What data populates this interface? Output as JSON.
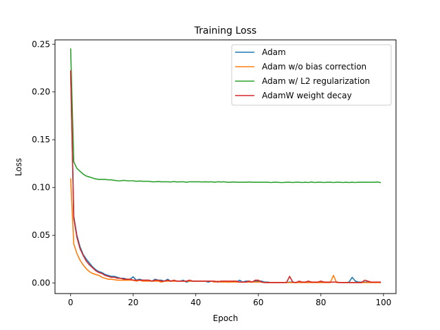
{
  "chart_data": {
    "type": "line",
    "title": "Training Loss",
    "xlabel": "Epoch",
    "ylabel": "Loss",
    "xlim": [
      -5,
      104
    ],
    "ylim": [
      -0.011,
      0.2545
    ],
    "xticks": [
      0,
      20,
      40,
      60,
      80,
      100
    ],
    "yticks": [
      0.0,
      0.05,
      0.1,
      0.15,
      0.2,
      0.25
    ],
    "ytick_labels": [
      "0.00",
      "0.05",
      "0.10",
      "0.15",
      "0.20",
      "0.25"
    ],
    "grid": false,
    "legend_position": "top-right",
    "series": [
      {
        "name": "Adam",
        "color": "#1f77b4",
        "x": [
          0,
          1,
          2,
          3,
          4,
          5,
          6,
          7,
          8,
          9,
          10,
          11,
          12,
          13,
          14,
          15,
          16,
          17,
          18,
          19,
          20,
          21,
          22,
          23,
          24,
          25,
          26,
          27,
          28,
          29,
          30,
          31,
          32,
          33,
          34,
          35,
          36,
          37,
          38,
          39,
          40,
          41,
          42,
          43,
          44,
          45,
          46,
          47,
          48,
          49,
          50,
          51,
          52,
          53,
          54,
          55,
          56,
          57,
          58,
          59,
          60,
          61,
          62,
          63,
          64,
          65,
          66,
          67,
          68,
          69,
          70,
          71,
          72,
          73,
          74,
          75,
          76,
          77,
          78,
          79,
          80,
          81,
          82,
          83,
          84,
          85,
          86,
          87,
          88,
          89,
          90,
          91,
          92,
          93,
          94,
          95,
          96,
          97,
          98,
          99
        ],
        "y": [
          0.222,
          0.07,
          0.05,
          0.038,
          0.03,
          0.025,
          0.021,
          0.017,
          0.014,
          0.012,
          0.011,
          0.009,
          0.008,
          0.007,
          0.007,
          0.006,
          0.005,
          0.005,
          0.004,
          0.004,
          0.0065,
          0.003,
          0.004,
          0.003,
          0.003,
          0.003,
          0.002,
          0.004,
          0.003,
          0.003,
          0.002,
          0.004,
          0.002,
          0.002,
          0.002,
          0.002,
          0.003,
          0.001,
          0.002,
          0.002,
          0.002,
          0.002,
          0.002,
          0.002,
          0.001,
          0.002,
          0.001,
          0.002,
          0.001,
          0.002,
          0.001,
          0.001,
          0.002,
          0.001,
          0.003,
          0.001,
          0.002,
          0.002,
          0.001,
          0.002,
          0.002,
          0.002,
          0.001,
          0.001,
          0.0005,
          0.0005,
          0.0005,
          0.0005,
          0.0005,
          0.0005,
          0.001,
          0.001,
          0.0005,
          0.001,
          0.001,
          0.001,
          0.001,
          0.001,
          0.001,
          0.001,
          0.001,
          0.001,
          0.001,
          0.001,
          0.001,
          0.001,
          0.0005,
          0.0005,
          0.0005,
          0.001,
          0.006,
          0.002,
          0.001,
          0.001,
          0.001,
          0.001,
          0.001,
          0.001,
          0.001,
          0.001
        ]
      },
      {
        "name": "Adam w/o bias correction",
        "color": "#ff7f0e",
        "x": [
          0,
          1,
          2,
          3,
          4,
          5,
          6,
          7,
          8,
          9,
          10,
          11,
          12,
          13,
          14,
          15,
          16,
          17,
          18,
          19,
          20,
          21,
          22,
          23,
          24,
          25,
          26,
          27,
          28,
          29,
          30,
          31,
          32,
          33,
          34,
          35,
          36,
          37,
          38,
          39,
          40,
          41,
          42,
          43,
          44,
          45,
          46,
          47,
          48,
          49,
          50,
          51,
          52,
          53,
          54,
          55,
          56,
          57,
          58,
          59,
          60,
          61,
          62,
          63,
          64,
          65,
          66,
          67,
          68,
          69,
          70,
          71,
          72,
          73,
          74,
          75,
          76,
          77,
          78,
          79,
          80,
          81,
          82,
          83,
          84,
          85,
          86,
          87,
          88,
          89,
          90,
          91,
          92,
          93,
          94,
          95,
          96,
          97,
          98,
          99
        ],
        "y": [
          0.109,
          0.041,
          0.031,
          0.024,
          0.019,
          0.015,
          0.012,
          0.01,
          0.009,
          0.008,
          0.006,
          0.005,
          0.004,
          0.004,
          0.0035,
          0.003,
          0.003,
          0.003,
          0.003,
          0.003,
          0.003,
          0.002,
          0.003,
          0.002,
          0.002,
          0.002,
          0.002,
          0.002,
          0.002,
          0.001,
          0.002,
          0.002,
          0.002,
          0.002,
          0.002,
          0.002,
          0.002,
          0.002,
          0.002,
          0.002,
          0.002,
          0.002,
          0.002,
          0.002,
          0.002,
          0.002,
          0.001,
          0.002,
          0.001,
          0.001,
          0.001,
          0.001,
          0.001,
          0.001,
          0.001,
          0.001,
          0.001,
          0.001,
          0.001,
          0.001,
          0.001,
          0.001,
          0.0005,
          0.0005,
          0.0005,
          0.0005,
          0.0005,
          0.0005,
          0.0005,
          0.0005,
          0.0005,
          0.0005,
          0.0005,
          0.0005,
          0.0005,
          0.0005,
          0.0005,
          0.0005,
          0.0005,
          0.0005,
          0.0005,
          0.0005,
          0.0005,
          0.0005,
          0.008,
          0.0005,
          0.0005,
          0.0005,
          0.0005,
          0.0005,
          0.0005,
          0.0005,
          0.0005,
          0.0005,
          0.0005,
          0.0005,
          0.0005,
          0.0005,
          0.0005,
          0.0005
        ]
      },
      {
        "name": "Adam w/ L2 regularization",
        "color": "#2ca02c",
        "x": [
          0,
          1,
          2,
          3,
          4,
          5,
          6,
          7,
          8,
          9,
          10,
          11,
          12,
          13,
          14,
          15,
          16,
          17,
          18,
          19,
          20,
          21,
          22,
          23,
          24,
          25,
          26,
          27,
          28,
          29,
          30,
          31,
          32,
          33,
          34,
          35,
          36,
          37,
          38,
          39,
          40,
          41,
          42,
          43,
          44,
          45,
          46,
          47,
          48,
          49,
          50,
          51,
          52,
          53,
          54,
          55,
          56,
          57,
          58,
          59,
          60,
          61,
          62,
          63,
          64,
          65,
          66,
          67,
          68,
          69,
          70,
          71,
          72,
          73,
          74,
          75,
          76,
          77,
          78,
          79,
          80,
          81,
          82,
          83,
          84,
          85,
          86,
          87,
          88,
          89,
          90,
          91,
          92,
          93,
          94,
          95,
          96,
          97,
          98,
          99
        ],
        "y": [
          0.245,
          0.127,
          0.12,
          0.117,
          0.114,
          0.112,
          0.111,
          0.11,
          0.109,
          0.1085,
          0.1085,
          0.1085,
          0.108,
          0.108,
          0.1075,
          0.107,
          0.107,
          0.1075,
          0.107,
          0.107,
          0.107,
          0.1065,
          0.1068,
          0.1065,
          0.1065,
          0.1065,
          0.106,
          0.106,
          0.1062,
          0.106,
          0.106,
          0.106,
          0.1058,
          0.1062,
          0.1058,
          0.106,
          0.106,
          0.1055,
          0.106,
          0.106,
          0.106,
          0.106,
          0.1058,
          0.106,
          0.1058,
          0.106,
          0.1055,
          0.106,
          0.1058,
          0.106,
          0.1055,
          0.1055,
          0.1058,
          0.1055,
          0.1055,
          0.1055,
          0.1055,
          0.1058,
          0.1055,
          0.1055,
          0.1055,
          0.1055,
          0.1055,
          0.1055,
          0.1052,
          0.1055,
          0.1055,
          0.1052,
          0.1052,
          0.1055,
          0.1055,
          0.1052,
          0.1055,
          0.1055,
          0.1052,
          0.1055,
          0.1052,
          0.1058,
          0.1052,
          0.1055,
          0.1055,
          0.1052,
          0.1055,
          0.1055,
          0.1052,
          0.1055,
          0.1055,
          0.1052,
          0.1055,
          0.1052,
          0.1055,
          0.1052,
          0.1055,
          0.1055,
          0.1055,
          0.1055,
          0.1055,
          0.1055,
          0.1058,
          0.1052
        ]
      },
      {
        "name": "AdamW weight decay",
        "color": "#d62728",
        "x": [
          0,
          1,
          2,
          3,
          4,
          5,
          6,
          7,
          8,
          9,
          10,
          11,
          12,
          13,
          14,
          15,
          16,
          17,
          18,
          19,
          20,
          21,
          22,
          23,
          24,
          25,
          26,
          27,
          28,
          29,
          30,
          31,
          32,
          33,
          34,
          35,
          36,
          37,
          38,
          39,
          40,
          41,
          42,
          43,
          44,
          45,
          46,
          47,
          48,
          49,
          50,
          51,
          52,
          53,
          54,
          55,
          56,
          57,
          58,
          59,
          60,
          61,
          62,
          63,
          64,
          65,
          66,
          67,
          68,
          69,
          70,
          71,
          72,
          73,
          74,
          75,
          76,
          77,
          78,
          79,
          80,
          81,
          82,
          83,
          84,
          85,
          86,
          87,
          88,
          89,
          90,
          91,
          92,
          93,
          94,
          95,
          96,
          97,
          98,
          99
        ],
        "y": [
          0.222,
          0.068,
          0.048,
          0.036,
          0.029,
          0.023,
          0.019,
          0.016,
          0.013,
          0.011,
          0.01,
          0.008,
          0.007,
          0.006,
          0.006,
          0.005,
          0.005,
          0.004,
          0.004,
          0.004,
          0.003,
          0.003,
          0.003,
          0.003,
          0.003,
          0.003,
          0.002,
          0.003,
          0.003,
          0.002,
          0.002,
          0.003,
          0.002,
          0.003,
          0.002,
          0.002,
          0.002,
          0.002,
          0.003,
          0.002,
          0.002,
          0.002,
          0.002,
          0.002,
          0.002,
          0.002,
          0.002,
          0.001,
          0.002,
          0.002,
          0.002,
          0.002,
          0.002,
          0.002,
          0.001,
          0.001,
          0.001,
          0.002,
          0.001,
          0.003,
          0.003,
          0.001,
          0.0005,
          0.0005,
          0.0005,
          0.0005,
          0.0005,
          0.0005,
          0.0005,
          0.0005,
          0.007,
          0.001,
          0.0005,
          0.002,
          0.001,
          0.001,
          0.002,
          0.001,
          0.001,
          0.001,
          0.002,
          0.001,
          0.001,
          0.001,
          0.001,
          0.001,
          0.0005,
          0.0005,
          0.0005,
          0.0005,
          0.0005,
          0.0005,
          0.0005,
          0.0005,
          0.003,
          0.002,
          0.001,
          0.001,
          0.001,
          0.001
        ]
      }
    ]
  }
}
